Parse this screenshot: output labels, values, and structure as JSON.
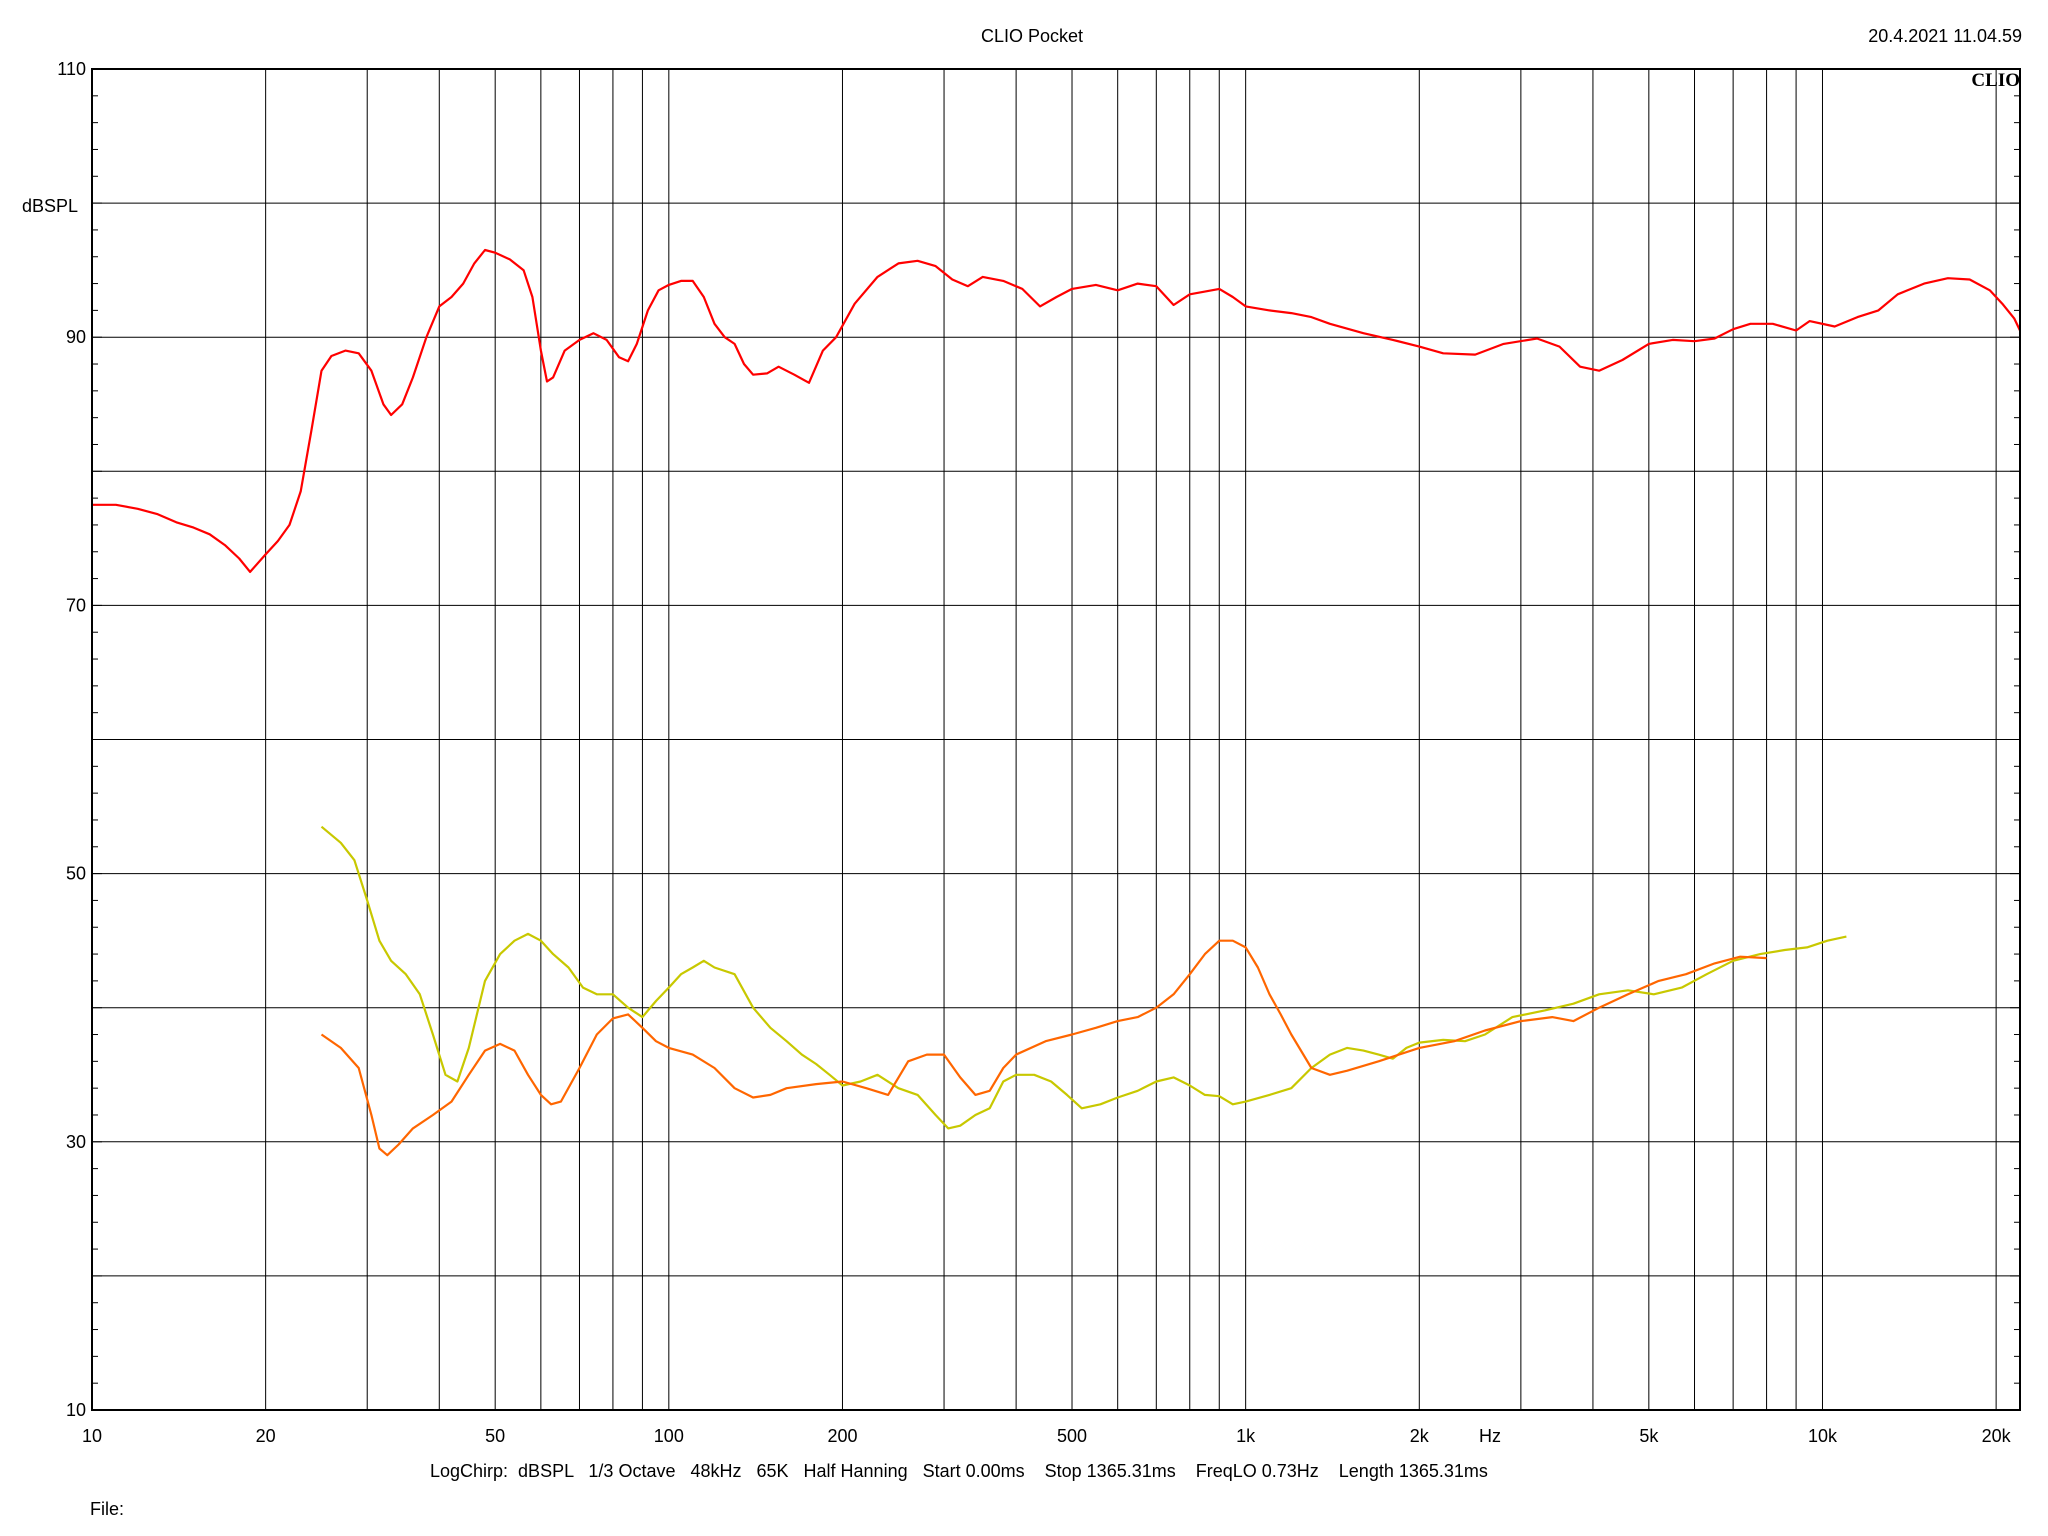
{
  "header": {
    "title": "CLIO Pocket",
    "timestamp": "20.4.2021 11.04.59",
    "brand": "CLIO"
  },
  "footer": {
    "settings": "LogChirp:  dBSPL   1/3 Octave   48kHz   65K   Half Hanning   Start 0.00ms    Stop 1365.31ms    FreqLO 0.73Hz    Length 1365.31ms",
    "file_label": "File:"
  },
  "chart_data": {
    "type": "line",
    "title": "CLIO Pocket",
    "xlabel": "Hz",
    "ylabel": "dBSPL",
    "x_scale": "log",
    "xlim": [
      10,
      22000
    ],
    "ylim": [
      10,
      110
    ],
    "grid": true,
    "x_ticks": [
      {
        "value": 10,
        "label": "10"
      },
      {
        "value": 20,
        "label": "20"
      },
      {
        "value": 50,
        "label": "50"
      },
      {
        "value": 100,
        "label": "100"
      },
      {
        "value": 200,
        "label": "200"
      },
      {
        "value": 500,
        "label": "500"
      },
      {
        "value": 1000,
        "label": "1k"
      },
      {
        "value": 2000,
        "label": "2k"
      },
      {
        "value": 5000,
        "label": "5k"
      },
      {
        "value": 10000,
        "label": "10k"
      },
      {
        "value": 20000,
        "label": "20k"
      }
    ],
    "x_minor_grid": [
      30,
      40,
      60,
      70,
      80,
      90,
      300,
      400,
      600,
      700,
      800,
      900,
      3000,
      4000,
      6000,
      7000,
      8000,
      9000
    ],
    "y_ticks": [
      {
        "value": 10,
        "label": "10"
      },
      {
        "value": 30,
        "label": "30"
      },
      {
        "value": 50,
        "label": "50"
      },
      {
        "value": 70,
        "label": "70"
      },
      {
        "value": 90,
        "label": "90"
      },
      {
        "value": 110,
        "label": "110"
      }
    ],
    "y_grid": [
      10,
      20,
      30,
      40,
      50,
      60,
      70,
      80,
      90,
      100,
      110
    ],
    "series": [
      {
        "color": "#ff0000",
        "points": [
          [
            10,
            77.5
          ],
          [
            11,
            77.5
          ],
          [
            12,
            77.2
          ],
          [
            13,
            76.8
          ],
          [
            14,
            76.2
          ],
          [
            15,
            75.8
          ],
          [
            16,
            75.3
          ],
          [
            17,
            74.5
          ],
          [
            18,
            73.5
          ],
          [
            18.8,
            72.5
          ],
          [
            20,
            73.8
          ],
          [
            21,
            74.8
          ],
          [
            22,
            76.0
          ],
          [
            23,
            78.5
          ],
          [
            24,
            83.0
          ],
          [
            25,
            87.5
          ],
          [
            26,
            88.6
          ],
          [
            27.5,
            89.0
          ],
          [
            29,
            88.8
          ],
          [
            30.5,
            87.5
          ],
          [
            32,
            85.0
          ],
          [
            33,
            84.2
          ],
          [
            34.5,
            85.0
          ],
          [
            36,
            87.0
          ],
          [
            38,
            90.0
          ],
          [
            40,
            92.3
          ],
          [
            42,
            93.0
          ],
          [
            44,
            94.0
          ],
          [
            46,
            95.5
          ],
          [
            48,
            96.5
          ],
          [
            50,
            96.3
          ],
          [
            53,
            95.8
          ],
          [
            56,
            95.0
          ],
          [
            58,
            93.0
          ],
          [
            60,
            89.0
          ],
          [
            61.5,
            86.7
          ],
          [
            63,
            87.0
          ],
          [
            66,
            89.0
          ],
          [
            70,
            89.8
          ],
          [
            74,
            90.3
          ],
          [
            78,
            89.8
          ],
          [
            82,
            88.5
          ],
          [
            85,
            88.2
          ],
          [
            88,
            89.5
          ],
          [
            92,
            92.0
          ],
          [
            96,
            93.5
          ],
          [
            100,
            93.9
          ],
          [
            105,
            94.2
          ],
          [
            110,
            94.2
          ],
          [
            115,
            93.0
          ],
          [
            120,
            91.0
          ],
          [
            125,
            90.0
          ],
          [
            130,
            89.5
          ],
          [
            135,
            88.0
          ],
          [
            140,
            87.2
          ],
          [
            148,
            87.3
          ],
          [
            155,
            87.8
          ],
          [
            165,
            87.2
          ],
          [
            175,
            86.6
          ],
          [
            185,
            89.0
          ],
          [
            195,
            90.0
          ],
          [
            210,
            92.5
          ],
          [
            230,
            94.5
          ],
          [
            250,
            95.5
          ],
          [
            270,
            95.7
          ],
          [
            290,
            95.3
          ],
          [
            310,
            94.3
          ],
          [
            330,
            93.8
          ],
          [
            350,
            94.5
          ],
          [
            380,
            94.2
          ],
          [
            410,
            93.6
          ],
          [
            440,
            92.3
          ],
          [
            470,
            93.0
          ],
          [
            500,
            93.6
          ],
          [
            550,
            93.9
          ],
          [
            600,
            93.5
          ],
          [
            650,
            94.0
          ],
          [
            700,
            93.8
          ],
          [
            750,
            92.4
          ],
          [
            800,
            93.2
          ],
          [
            850,
            93.4
          ],
          [
            900,
            93.6
          ],
          [
            950,
            93.0
          ],
          [
            1000,
            92.3
          ],
          [
            1100,
            92.0
          ],
          [
            1200,
            91.8
          ],
          [
            1300,
            91.5
          ],
          [
            1400,
            91.0
          ],
          [
            1600,
            90.3
          ],
          [
            1800,
            89.8
          ],
          [
            2000,
            89.3
          ],
          [
            2200,
            88.8
          ],
          [
            2500,
            88.7
          ],
          [
            2800,
            89.5
          ],
          [
            3200,
            89.9
          ],
          [
            3500,
            89.3
          ],
          [
            3800,
            87.8
          ],
          [
            4100,
            87.5
          ],
          [
            4500,
            88.3
          ],
          [
            5000,
            89.5
          ],
          [
            5500,
            89.8
          ],
          [
            6000,
            89.7
          ],
          [
            6500,
            89.9
          ],
          [
            7000,
            90.6
          ],
          [
            7500,
            91.0
          ],
          [
            8200,
            91.0
          ],
          [
            9000,
            90.5
          ],
          [
            9500,
            91.2
          ],
          [
            10500,
            90.8
          ],
          [
            11500,
            91.5
          ],
          [
            12500,
            92.0
          ],
          [
            13500,
            93.2
          ],
          [
            15000,
            94.0
          ],
          [
            16500,
            94.4
          ],
          [
            18000,
            94.3
          ],
          [
            19500,
            93.5
          ],
          [
            20500,
            92.5
          ],
          [
            21500,
            91.4
          ],
          [
            22000,
            90.5
          ]
        ]
      },
      {
        "color": "#c8c800",
        "points": [
          [
            25,
            53.5
          ],
          [
            27,
            52.3
          ],
          [
            28.5,
            51.0
          ],
          [
            30,
            48.0
          ],
          [
            31.5,
            45.0
          ],
          [
            33,
            43.5
          ],
          [
            35,
            42.5
          ],
          [
            37,
            41.0
          ],
          [
            39,
            38.0
          ],
          [
            41,
            35.0
          ],
          [
            43,
            34.5
          ],
          [
            45,
            37.0
          ],
          [
            48,
            42.0
          ],
          [
            51,
            44.0
          ],
          [
            54,
            45.0
          ],
          [
            57,
            45.5
          ],
          [
            60,
            45.0
          ],
          [
            63,
            44.0
          ],
          [
            67,
            43.0
          ],
          [
            71,
            41.5
          ],
          [
            75,
            41.0
          ],
          [
            80,
            41.0
          ],
          [
            85,
            40.0
          ],
          [
            90,
            39.3
          ],
          [
            95,
            40.5
          ],
          [
            100,
            41.5
          ],
          [
            105,
            42.5
          ],
          [
            110,
            43.0
          ],
          [
            115,
            43.5
          ],
          [
            120,
            43.0
          ],
          [
            130,
            42.5
          ],
          [
            140,
            40.0
          ],
          [
            150,
            38.5
          ],
          [
            160,
            37.5
          ],
          [
            170,
            36.5
          ],
          [
            180,
            35.8
          ],
          [
            190,
            35.0
          ],
          [
            200,
            34.2
          ],
          [
            215,
            34.5
          ],
          [
            230,
            35.0
          ],
          [
            250,
            34.0
          ],
          [
            270,
            33.5
          ],
          [
            290,
            32.0
          ],
          [
            305,
            31.0
          ],
          [
            320,
            31.2
          ],
          [
            340,
            32.0
          ],
          [
            360,
            32.5
          ],
          [
            380,
            34.5
          ],
          [
            400,
            35.0
          ],
          [
            430,
            35.0
          ],
          [
            460,
            34.5
          ],
          [
            490,
            33.5
          ],
          [
            520,
            32.5
          ],
          [
            560,
            32.8
          ],
          [
            600,
            33.3
          ],
          [
            650,
            33.8
          ],
          [
            700,
            34.5
          ],
          [
            750,
            34.8
          ],
          [
            800,
            34.2
          ],
          [
            850,
            33.5
          ],
          [
            900,
            33.4
          ],
          [
            950,
            32.8
          ],
          [
            1000,
            33.0
          ],
          [
            1100,
            33.5
          ],
          [
            1200,
            34.0
          ],
          [
            1300,
            35.5
          ],
          [
            1400,
            36.5
          ],
          [
            1500,
            37.0
          ],
          [
            1600,
            36.8
          ],
          [
            1700,
            36.5
          ],
          [
            1800,
            36.2
          ],
          [
            1900,
            37.0
          ],
          [
            2000,
            37.4
          ],
          [
            2200,
            37.6
          ],
          [
            2400,
            37.5
          ],
          [
            2600,
            38.0
          ],
          [
            2900,
            39.3
          ],
          [
            3300,
            39.8
          ],
          [
            3700,
            40.3
          ],
          [
            4100,
            41.0
          ],
          [
            4600,
            41.3
          ],
          [
            5100,
            41.0
          ],
          [
            5700,
            41.5
          ],
          [
            6300,
            42.5
          ],
          [
            7000,
            43.5
          ],
          [
            7800,
            44.0
          ],
          [
            8600,
            44.3
          ],
          [
            9400,
            44.5
          ],
          [
            10200,
            45.0
          ],
          [
            11000,
            45.3
          ]
        ]
      },
      {
        "color": "#ff6600",
        "points": [
          [
            25,
            38.0
          ],
          [
            27,
            37.0
          ],
          [
            29,
            35.5
          ],
          [
            30.5,
            32.0
          ],
          [
            31.5,
            29.5
          ],
          [
            32.5,
            29.0
          ],
          [
            34,
            29.8
          ],
          [
            36,
            31.0
          ],
          [
            39,
            32.0
          ],
          [
            42,
            33.0
          ],
          [
            45,
            35.0
          ],
          [
            48,
            36.8
          ],
          [
            51,
            37.3
          ],
          [
            54,
            36.8
          ],
          [
            57,
            35.0
          ],
          [
            60,
            33.5
          ],
          [
            62.5,
            32.8
          ],
          [
            65,
            33.0
          ],
          [
            70,
            35.5
          ],
          [
            75,
            38.0
          ],
          [
            80,
            39.2
          ],
          [
            85,
            39.5
          ],
          [
            90,
            38.5
          ],
          [
            95,
            37.5
          ],
          [
            100,
            37.0
          ],
          [
            110,
            36.5
          ],
          [
            120,
            35.5
          ],
          [
            130,
            34.0
          ],
          [
            140,
            33.3
          ],
          [
            150,
            33.5
          ],
          [
            160,
            34.0
          ],
          [
            180,
            34.3
          ],
          [
            200,
            34.5
          ],
          [
            220,
            34.0
          ],
          [
            240,
            33.5
          ],
          [
            260,
            36.0
          ],
          [
            280,
            36.5
          ],
          [
            300,
            36.5
          ],
          [
            320,
            34.8
          ],
          [
            340,
            33.5
          ],
          [
            360,
            33.8
          ],
          [
            380,
            35.5
          ],
          [
            400,
            36.5
          ],
          [
            450,
            37.5
          ],
          [
            500,
            38.0
          ],
          [
            550,
            38.5
          ],
          [
            600,
            39.0
          ],
          [
            650,
            39.3
          ],
          [
            700,
            40.0
          ],
          [
            750,
            41.0
          ],
          [
            800,
            42.5
          ],
          [
            850,
            44.0
          ],
          [
            900,
            45.0
          ],
          [
            950,
            45.0
          ],
          [
            1000,
            44.5
          ],
          [
            1050,
            43.0
          ],
          [
            1100,
            41.0
          ],
          [
            1150,
            39.5
          ],
          [
            1200,
            38.0
          ],
          [
            1300,
            35.5
          ],
          [
            1400,
            35.0
          ],
          [
            1500,
            35.3
          ],
          [
            1700,
            36.0
          ],
          [
            2000,
            37.0
          ],
          [
            2300,
            37.5
          ],
          [
            2600,
            38.3
          ],
          [
            3000,
            39.0
          ],
          [
            3400,
            39.3
          ],
          [
            3700,
            39.0
          ],
          [
            4100,
            40.0
          ],
          [
            4600,
            41.0
          ],
          [
            5200,
            42.0
          ],
          [
            5800,
            42.5
          ],
          [
            6500,
            43.3
          ],
          [
            7200,
            43.8
          ],
          [
            8000,
            43.7
          ]
        ]
      }
    ]
  }
}
